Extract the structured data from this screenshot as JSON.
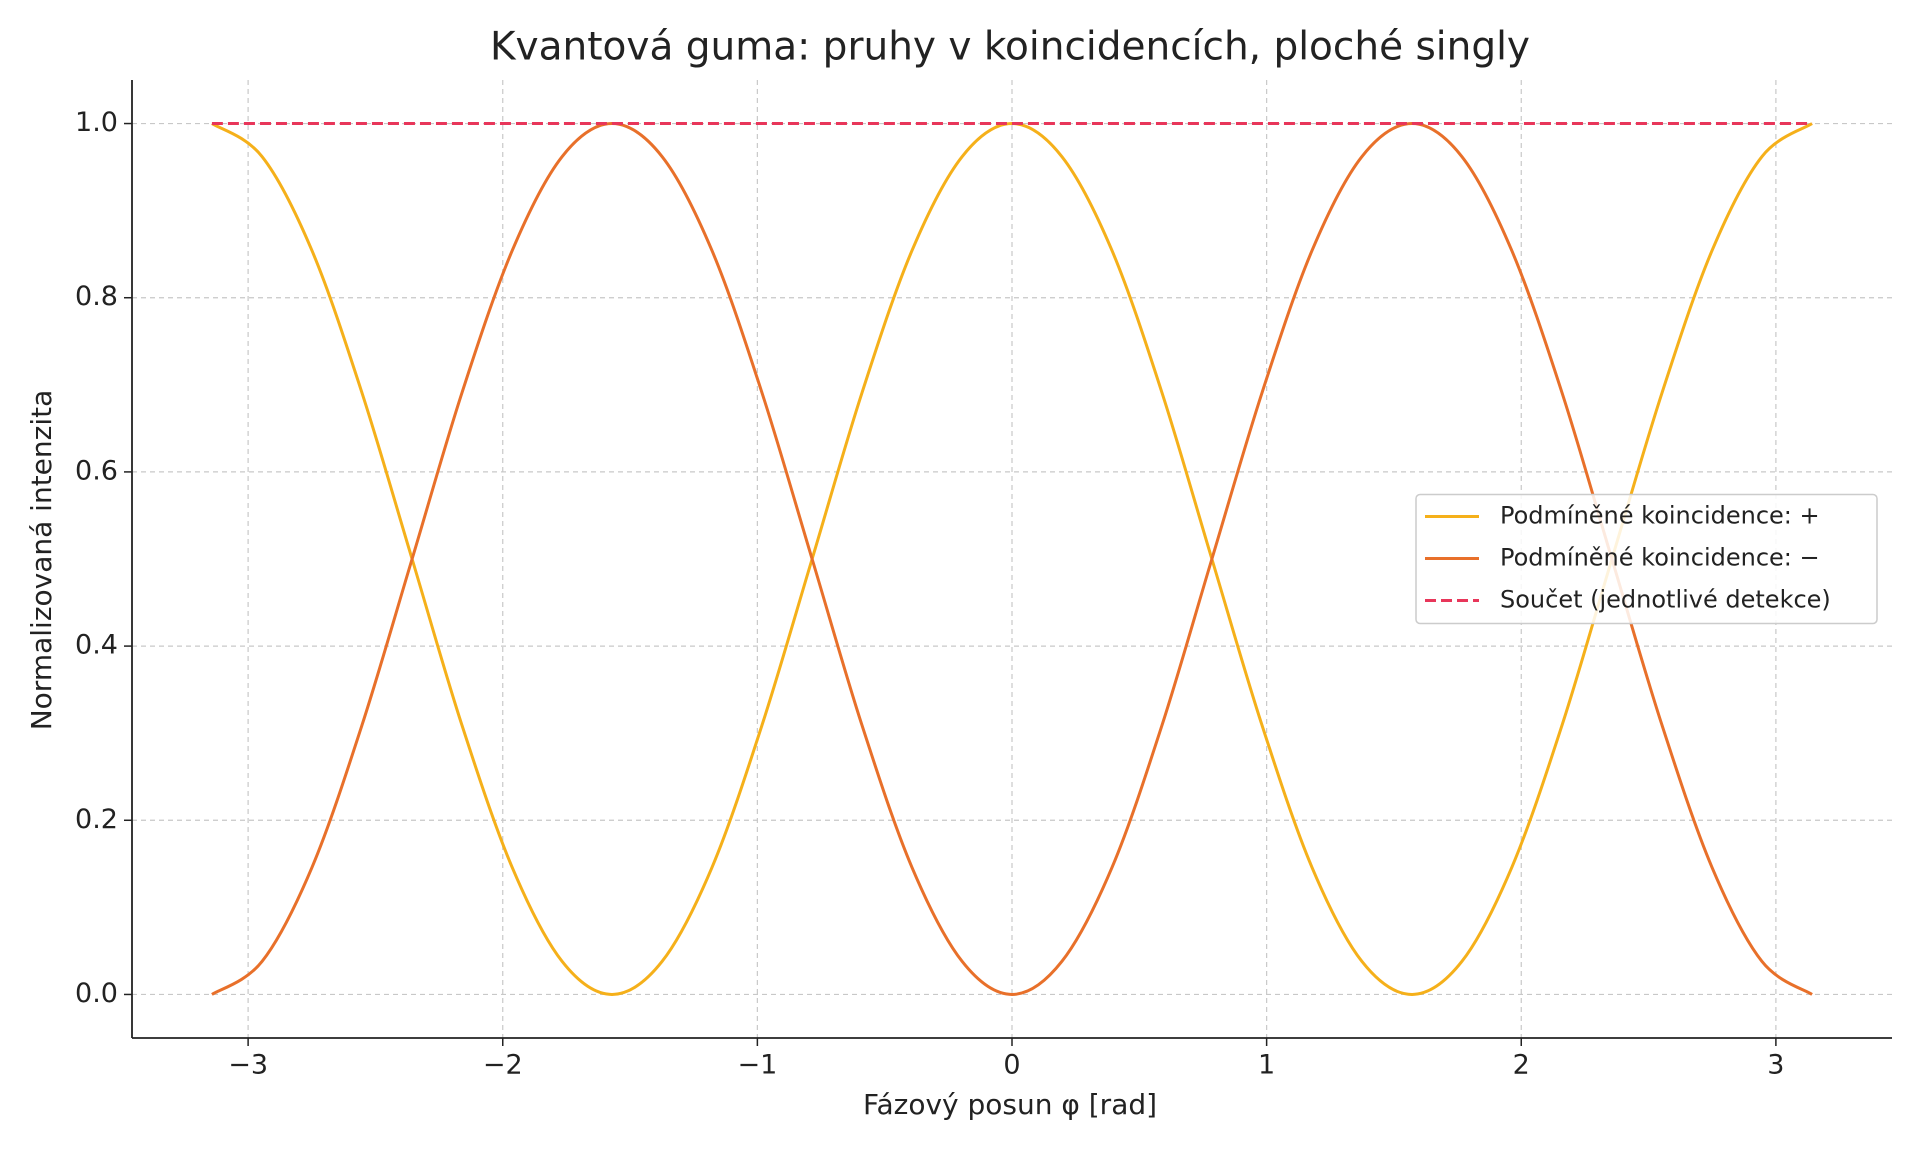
{
  "chart_data": {
    "type": "line",
    "title": "Kvantová guma: pruhy v koincidencích, ploché singly",
    "x_label": "Fázový posun φ [rad]",
    "y_label": "Normalizovaná intenzita",
    "x": [
      -3.142,
      -2.945,
      -2.749,
      -2.553,
      -2.356,
      -2.16,
      -1.963,
      -1.767,
      -1.571,
      -1.374,
      -1.178,
      -0.982,
      -0.785,
      -0.589,
      -0.393,
      -0.196,
      0,
      0.196,
      0.393,
      0.589,
      0.785,
      0.982,
      1.178,
      1.374,
      1.571,
      1.767,
      1.963,
      2.16,
      2.356,
      2.553,
      2.749,
      2.945,
      3.142
    ],
    "series": [
      {
        "name": "Podmíněné koincidence: +",
        "color": "#f5b01a",
        "dash": false,
        "values": [
          1,
          0.962,
          0.854,
          0.691,
          0.5,
          0.309,
          0.146,
          0.038,
          0,
          0.038,
          0.146,
          0.309,
          0.5,
          0.691,
          0.854,
          0.962,
          1,
          0.962,
          0.854,
          0.691,
          0.5,
          0.309,
          0.146,
          0.038,
          0,
          0.038,
          0.146,
          0.309,
          0.5,
          0.691,
          0.854,
          0.962,
          1
        ]
      },
      {
        "name": "Podmíněné koincidence: −",
        "color": "#e8702a",
        "dash": false,
        "values": [
          0,
          0.038,
          0.146,
          0.309,
          0.5,
          0.691,
          0.854,
          0.962,
          1,
          0.962,
          0.854,
          0.691,
          0.5,
          0.309,
          0.146,
          0.038,
          0,
          0.038,
          0.146,
          0.309,
          0.5,
          0.691,
          0.854,
          0.962,
          1,
          0.962,
          0.854,
          0.691,
          0.5,
          0.309,
          0.146,
          0.038,
          0
        ]
      },
      {
        "name": "Součet (jednotlivé detekce)",
        "color": "#e8365a",
        "dash": true,
        "values": [
          1,
          1,
          1,
          1,
          1,
          1,
          1,
          1,
          1,
          1,
          1,
          1,
          1,
          1,
          1,
          1,
          1,
          1,
          1,
          1,
          1,
          1,
          1,
          1,
          1,
          1,
          1,
          1,
          1,
          1,
          1,
          1,
          1
        ]
      }
    ],
    "xlim": [
      -3.456,
      3.456
    ],
    "xticks": [
      {
        "value": -3,
        "label": "−3"
      },
      {
        "value": -2,
        "label": "−2"
      },
      {
        "value": -1,
        "label": "−1"
      },
      0,
      1,
      2,
      3
    ],
    "ylim": [
      -0.05,
      1.05
    ],
    "yticks": [
      {
        "value": 0,
        "label": "0.0"
      },
      0.2,
      0.4,
      0.6,
      0.8,
      {
        "value": 1,
        "label": "1.0"
      }
    ],
    "grid": true,
    "legend": "center right"
  }
}
